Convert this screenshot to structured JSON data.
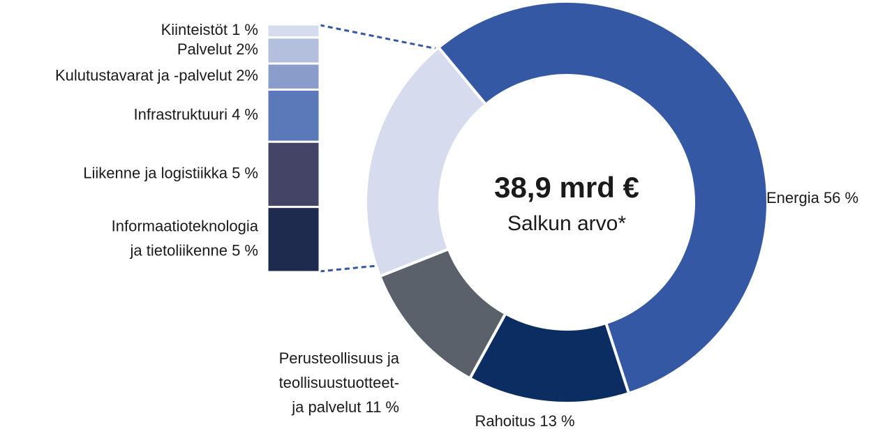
{
  "chart_data": {
    "type": "donut",
    "center_value": "38,9 mrd €",
    "center_label": "Salkun arvo*",
    "categories": [
      [
        "Energia 56 %"
      ],
      [
        "Rahoitus 13 %"
      ],
      [
        "Perusteollisuus ja",
        "teollisuustuotteet-",
        "ja palvelut 11 %"
      ],
      null
    ],
    "values": [
      56,
      13,
      11,
      20
    ],
    "colors": [
      "#3558a5",
      "#0c2d62",
      "#5b616a",
      "#d6dcee"
    ],
    "breakdown": {
      "categories": [
        [
          "Informaatioteknologia",
          "ja tietoliikenne 5 %"
        ],
        [
          "Liikenne ja logistiikka 5 %"
        ],
        [
          "Infrastruktuuri 4 %"
        ],
        [
          "Kulutustavarat ja -palvelut 2%"
        ],
        [
          "Palvelut 2%"
        ],
        [
          "Kiinteistöt 1 %"
        ]
      ],
      "values": [
        5,
        5,
        4,
        2,
        2,
        1
      ],
      "colors": [
        "#1f2a4f",
        "#444466",
        "#5b78b8",
        "#8a9cc9",
        "#b3bfdd",
        "#d5dcee"
      ]
    }
  }
}
